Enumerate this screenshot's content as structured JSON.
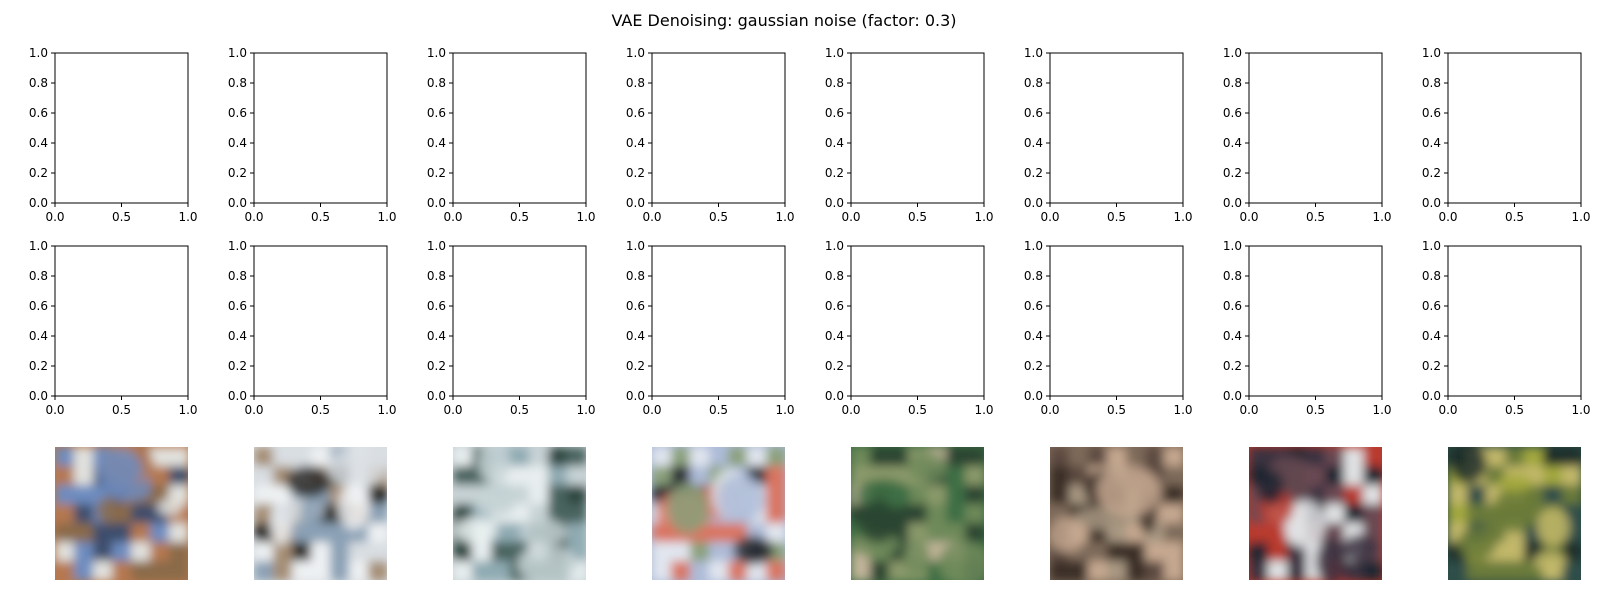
{
  "chart_data": {
    "type": "grid",
    "title": "VAE Denoising: gaussian noise (factor: 0.3)",
    "grid": {
      "rows": 3,
      "cols": 8
    },
    "empty_axes": {
      "xlim": [
        0,
        1
      ],
      "ylim": [
        0,
        1
      ],
      "xticks": [
        "0.0",
        "0.5",
        "1.0"
      ],
      "yticks": [
        "0.0",
        "0.2",
        "0.4",
        "0.6",
        "0.8",
        "1.0"
      ]
    },
    "images": [
      {
        "palette": [
          "#b5784f",
          "#e2e2de",
          "#3e4e6c",
          "#6d8cc0",
          "#8a6a4a"
        ]
      },
      {
        "palette": [
          "#d9dee2",
          "#2c2a28",
          "#8aa0b5",
          "#a58d73",
          "#eef1f3"
        ]
      },
      {
        "palette": [
          "#c7d3d6",
          "#2f4640",
          "#8faab2",
          "#e8eeef",
          "#49635e"
        ]
      },
      {
        "palette": [
          "#aebcd8",
          "#2a2f35",
          "#d97462",
          "#8aa07a",
          "#e1e6ef"
        ]
      },
      {
        "palette": [
          "#3e6e44",
          "#c2b59a",
          "#2a4530",
          "#8b9a6a",
          "#6e8a5a"
        ]
      },
      {
        "palette": [
          "#7e6a5a",
          "#c6a890",
          "#3a2e28",
          "#a89882",
          "#5c4a40"
        ]
      },
      {
        "palette": [
          "#b93a2e",
          "#1f2530",
          "#e0e2e4",
          "#6a4a52",
          "#3a3040"
        ]
      },
      {
        "palette": [
          "#2e4e48",
          "#a3a83c",
          "#6a7a3a",
          "#c2b86a",
          "#1e2e2a"
        ]
      }
    ]
  }
}
